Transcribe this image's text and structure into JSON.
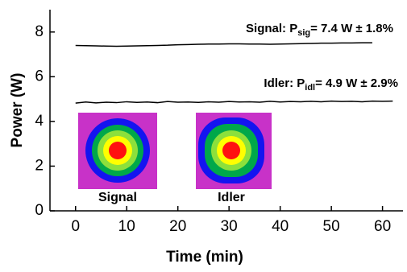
{
  "chart_data": {
    "type": "line",
    "xlabel": "Time (min)",
    "ylabel": "Power (W)",
    "xlim": [
      -5,
      64
    ],
    "ylim": [
      0,
      9
    ],
    "xticks": [
      0,
      10,
      20,
      30,
      40,
      50,
      60
    ],
    "yticks": [
      0,
      2,
      4,
      6,
      8
    ],
    "series": [
      {
        "name": "Signal",
        "color": "#000000",
        "x": [
          0,
          2,
          4,
          6,
          8,
          10,
          12,
          14,
          16,
          18,
          20,
          22,
          24,
          26,
          28,
          30,
          32,
          34,
          36,
          38,
          40,
          42,
          44,
          46,
          48,
          50,
          52,
          54,
          56,
          58
        ],
        "values": [
          7.4,
          7.39,
          7.38,
          7.37,
          7.36,
          7.37,
          7.38,
          7.39,
          7.4,
          7.41,
          7.43,
          7.44,
          7.45,
          7.46,
          7.46,
          7.47,
          7.47,
          7.46,
          7.46,
          7.45,
          7.46,
          7.47,
          7.48,
          7.49,
          7.5,
          7.5,
          7.51,
          7.51,
          7.52,
          7.52
        ]
      },
      {
        "name": "Idler",
        "color": "#000000",
        "x": [
          0,
          2,
          4,
          6,
          8,
          10,
          12,
          14,
          16,
          18,
          20,
          22,
          24,
          26,
          28,
          30,
          32,
          34,
          36,
          38,
          40,
          42,
          44,
          46,
          48,
          50,
          52,
          54,
          56,
          58,
          60,
          62
        ],
        "values": [
          4.82,
          4.87,
          4.83,
          4.86,
          4.84,
          4.88,
          4.85,
          4.87,
          4.84,
          4.89,
          4.86,
          4.87,
          4.85,
          4.88,
          4.86,
          4.89,
          4.87,
          4.88,
          4.86,
          4.9,
          4.87,
          4.89,
          4.88,
          4.9,
          4.88,
          4.91,
          4.89,
          4.9,
          4.88,
          4.91,
          4.9,
          4.91
        ]
      }
    ],
    "annotations": [
      {
        "text": "Signal: P",
        "sub": "sig",
        "rest": "= 7.4 W ± 1.8%"
      },
      {
        "text": "Idler: P",
        "sub": "idl",
        "rest": "= 4.9 W ± 2.9%"
      }
    ],
    "insets": [
      {
        "label": "Signal"
      },
      {
        "label": "Idler"
      }
    ]
  }
}
